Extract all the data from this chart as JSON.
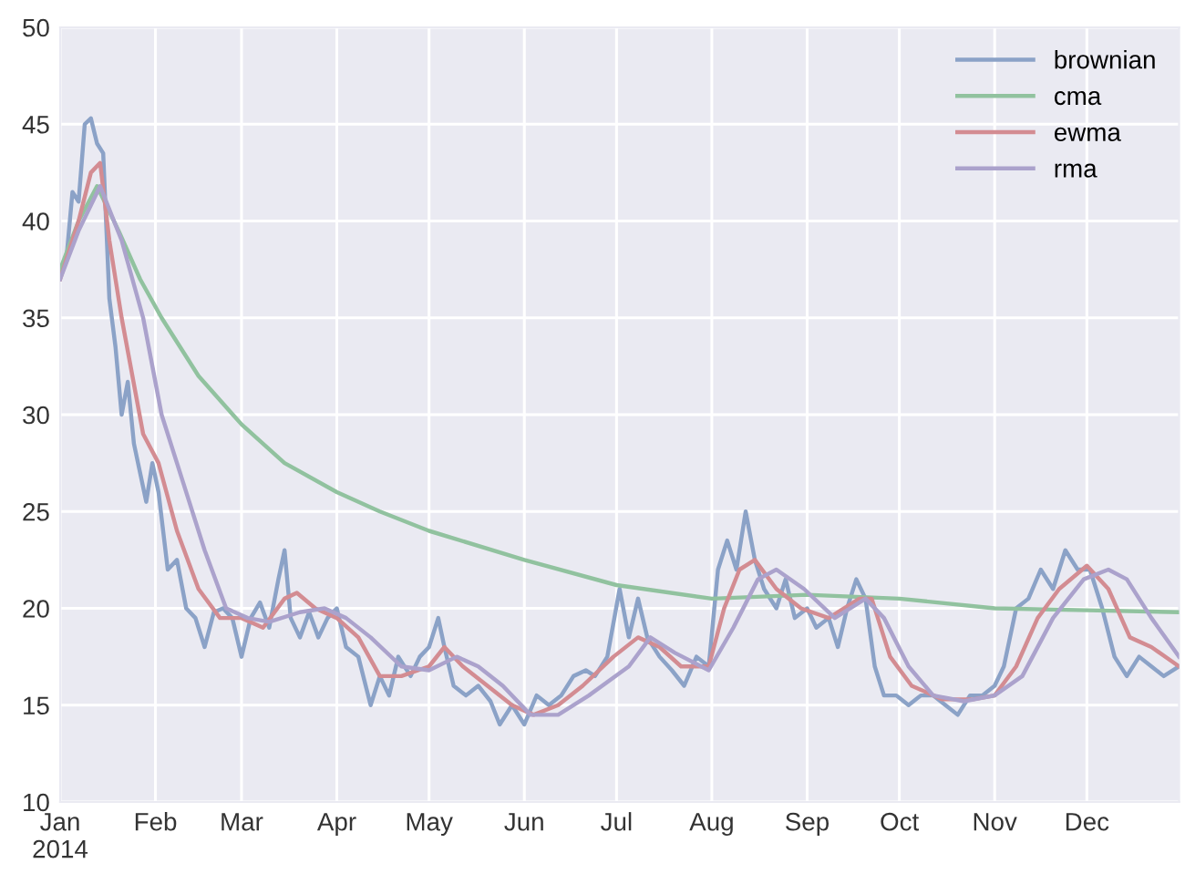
{
  "chart_data": {
    "type": "line",
    "xlim": [
      "2014-01-01",
      "2014-12-31"
    ],
    "xticks": [
      {
        "value": "2014-01-01",
        "label": "Jan\n2014"
      },
      {
        "value": "2014-02-01",
        "label": "Feb"
      },
      {
        "value": "2014-03-01",
        "label": "Mar"
      },
      {
        "value": "2014-04-01",
        "label": "Apr"
      },
      {
        "value": "2014-05-01",
        "label": "May"
      },
      {
        "value": "2014-06-01",
        "label": "Jun"
      },
      {
        "value": "2014-07-01",
        "label": "Jul"
      },
      {
        "value": "2014-08-01",
        "label": "Aug"
      },
      {
        "value": "2014-09-01",
        "label": "Sep"
      },
      {
        "value": "2014-10-01",
        "label": "Oct"
      },
      {
        "value": "2014-11-01",
        "label": "Nov"
      },
      {
        "value": "2014-12-01",
        "label": "Dec"
      }
    ],
    "ylim": [
      10,
      50
    ],
    "yticks": [
      10,
      15,
      20,
      25,
      30,
      35,
      40,
      45,
      50
    ],
    "grid": true,
    "legend": "top right",
    "marker": "none",
    "line_style": "solid",
    "series": [
      {
        "name": "brownian",
        "color": "#8ba2c7",
        "x": [
          "2014-01-01",
          "2014-01-03",
          "2014-01-05",
          "2014-01-07",
          "2014-01-09",
          "2014-01-11",
          "2014-01-13",
          "2014-01-15",
          "2014-01-17",
          "2014-01-19",
          "2014-01-21",
          "2014-01-23",
          "2014-01-25",
          "2014-01-27",
          "2014-01-29",
          "2014-01-31",
          "2014-02-02",
          "2014-02-05",
          "2014-02-08",
          "2014-02-11",
          "2014-02-14",
          "2014-02-17",
          "2014-02-20",
          "2014-02-23",
          "2014-02-26",
          "2014-03-01",
          "2014-03-04",
          "2014-03-07",
          "2014-03-10",
          "2014-03-13",
          "2014-03-15",
          "2014-03-17",
          "2014-03-20",
          "2014-03-23",
          "2014-03-26",
          "2014-03-29",
          "2014-04-01",
          "2014-04-04",
          "2014-04-08",
          "2014-04-12",
          "2014-04-15",
          "2014-04-18",
          "2014-04-21",
          "2014-04-25",
          "2014-04-28",
          "2014-05-01",
          "2014-05-04",
          "2014-05-06",
          "2014-05-09",
          "2014-05-13",
          "2014-05-17",
          "2014-05-21",
          "2014-05-24",
          "2014-05-28",
          "2014-06-01",
          "2014-06-05",
          "2014-06-09",
          "2014-06-13",
          "2014-06-17",
          "2014-06-21",
          "2014-06-24",
          "2014-06-28",
          "2014-07-02",
          "2014-07-05",
          "2014-07-08",
          "2014-07-11",
          "2014-07-15",
          "2014-07-19",
          "2014-07-23",
          "2014-07-27",
          "2014-07-31",
          "2014-08-03",
          "2014-08-06",
          "2014-08-09",
          "2014-08-12",
          "2014-08-15",
          "2014-08-18",
          "2014-08-22",
          "2014-08-25",
          "2014-08-28",
          "2014-09-01",
          "2014-09-04",
          "2014-09-08",
          "2014-09-11",
          "2014-09-14",
          "2014-09-17",
          "2014-09-20",
          "2014-09-23",
          "2014-09-26",
          "2014-09-30",
          "2014-10-04",
          "2014-10-08",
          "2014-10-12",
          "2014-10-16",
          "2014-10-20",
          "2014-10-24",
          "2014-10-28",
          "2014-11-01",
          "2014-11-04",
          "2014-11-08",
          "2014-11-12",
          "2014-11-16",
          "2014-11-20",
          "2014-11-24",
          "2014-11-28",
          "2014-12-02",
          "2014-12-06",
          "2014-12-10",
          "2014-12-14",
          "2014-12-18",
          "2014-12-22",
          "2014-12-26",
          "2014-12-31"
        ],
        "values": [
          37.5,
          38,
          41.5,
          41,
          45,
          45.3,
          44,
          43.5,
          36,
          33.5,
          30,
          31.7,
          28.5,
          27,
          25.5,
          27.5,
          26,
          22,
          22.5,
          20,
          19.5,
          18,
          19.8,
          20,
          19.5,
          17.5,
          19.5,
          20.3,
          19,
          21.5,
          23,
          19.5,
          18.5,
          19.8,
          18.5,
          19.5,
          20,
          18,
          17.5,
          15,
          16.5,
          15.5,
          17.5,
          16.5,
          17.5,
          18,
          19.5,
          18,
          16,
          15.5,
          16,
          15.2,
          14,
          15,
          14,
          15.5,
          15,
          15.5,
          16.5,
          16.8,
          16.5,
          17.5,
          21,
          18.5,
          20.5,
          18.5,
          17.5,
          16.8,
          16,
          17.5,
          17,
          22,
          23.5,
          22,
          25,
          22.5,
          21,
          20,
          21.5,
          19.5,
          20,
          19,
          19.5,
          18,
          20,
          21.5,
          20.5,
          17,
          15.5,
          15.5,
          15,
          15.5,
          15.5,
          15,
          14.5,
          15.5,
          15.5,
          16,
          17,
          20,
          20.5,
          22,
          21,
          23,
          22,
          22,
          20,
          17.5,
          16.5,
          17.5,
          17,
          16.5,
          17
        ]
      },
      {
        "name": "cma",
        "color": "#91c29f",
        "x": [
          "2014-01-01",
          "2014-01-07",
          "2014-01-13",
          "2014-01-20",
          "2014-01-27",
          "2014-02-03",
          "2014-02-15",
          "2014-03-01",
          "2014-03-15",
          "2014-04-01",
          "2014-04-15",
          "2014-05-01",
          "2014-06-01",
          "2014-07-01",
          "2014-08-01",
          "2014-09-01",
          "2014-10-01",
          "2014-11-01",
          "2014-12-01",
          "2014-12-31"
        ],
        "values": [
          37.5,
          40,
          41.8,
          39.5,
          37,
          35,
          32,
          29.5,
          27.5,
          26,
          25,
          24,
          22.5,
          21.2,
          20.5,
          20.7,
          20.5,
          20,
          19.9,
          19.8
        ]
      },
      {
        "name": "ewma",
        "color": "#d38c92",
        "x": [
          "2014-01-01",
          "2014-01-07",
          "2014-01-11",
          "2014-01-14",
          "2014-01-17",
          "2014-01-21",
          "2014-01-28",
          "2014-02-02",
          "2014-02-08",
          "2014-02-15",
          "2014-02-22",
          "2014-03-01",
          "2014-03-08",
          "2014-03-15",
          "2014-03-19",
          "2014-03-25",
          "2014-04-01",
          "2014-04-08",
          "2014-04-15",
          "2014-04-22",
          "2014-05-01",
          "2014-05-06",
          "2014-05-12",
          "2014-05-20",
          "2014-05-28",
          "2014-06-04",
          "2014-06-12",
          "2014-06-20",
          "2014-06-30",
          "2014-07-08",
          "2014-07-15",
          "2014-07-22",
          "2014-07-31",
          "2014-08-05",
          "2014-08-10",
          "2014-08-15",
          "2014-08-22",
          "2014-08-30",
          "2014-09-08",
          "2014-09-18",
          "2014-09-22",
          "2014-09-28",
          "2014-10-05",
          "2014-10-15",
          "2014-10-25",
          "2014-11-01",
          "2014-11-08",
          "2014-11-15",
          "2014-11-22",
          "2014-12-01",
          "2014-12-08",
          "2014-12-15",
          "2014-12-22",
          "2014-12-31"
        ],
        "values": [
          37,
          40,
          42.5,
          43,
          39,
          35,
          29,
          27.5,
          24,
          21,
          19.5,
          19.5,
          19,
          20.5,
          20.8,
          20,
          19.5,
          18.5,
          16.5,
          16.5,
          17,
          18,
          17,
          16,
          15,
          14.5,
          15,
          16,
          17.5,
          18.5,
          18,
          17,
          17,
          20,
          22,
          22.5,
          21,
          20,
          19.5,
          20.5,
          20.5,
          17.5,
          16,
          15.3,
          15.3,
          15.5,
          17,
          19.5,
          21,
          22.2,
          21,
          18.5,
          18,
          17
        ]
      },
      {
        "name": "rma",
        "color": "#aba2cc",
        "x": [
          "2014-01-01",
          "2014-01-07",
          "2014-01-14",
          "2014-01-21",
          "2014-01-28",
          "2014-02-03",
          "2014-02-10",
          "2014-02-17",
          "2014-02-24",
          "2014-03-03",
          "2014-03-10",
          "2014-03-20",
          "2014-03-28",
          "2014-04-04",
          "2014-04-12",
          "2014-04-22",
          "2014-05-01",
          "2014-05-10",
          "2014-05-17",
          "2014-05-25",
          "2014-06-03",
          "2014-06-12",
          "2014-06-22",
          "2014-07-05",
          "2014-07-12",
          "2014-07-20",
          "2014-07-31",
          "2014-08-08",
          "2014-08-16",
          "2014-08-22",
          "2014-08-31",
          "2014-09-10",
          "2014-09-20",
          "2014-09-26",
          "2014-10-04",
          "2014-10-12",
          "2014-10-22",
          "2014-11-01",
          "2014-11-10",
          "2014-11-20",
          "2014-11-30",
          "2014-12-08",
          "2014-12-14",
          "2014-12-22",
          "2014-12-31"
        ],
        "values": [
          37,
          39.5,
          41.8,
          39,
          35,
          30,
          26.5,
          23,
          20,
          19.5,
          19.3,
          19.8,
          20,
          19.5,
          18.5,
          17,
          16.8,
          17.5,
          17,
          16,
          14.5,
          14.5,
          15.5,
          17,
          18.5,
          17.7,
          16.8,
          19,
          21.5,
          22,
          21,
          19.5,
          20.5,
          19.5,
          17,
          15.5,
          15.2,
          15.5,
          16.5,
          19.5,
          21.5,
          22,
          21.5,
          19.5,
          17.5
        ]
      }
    ]
  }
}
